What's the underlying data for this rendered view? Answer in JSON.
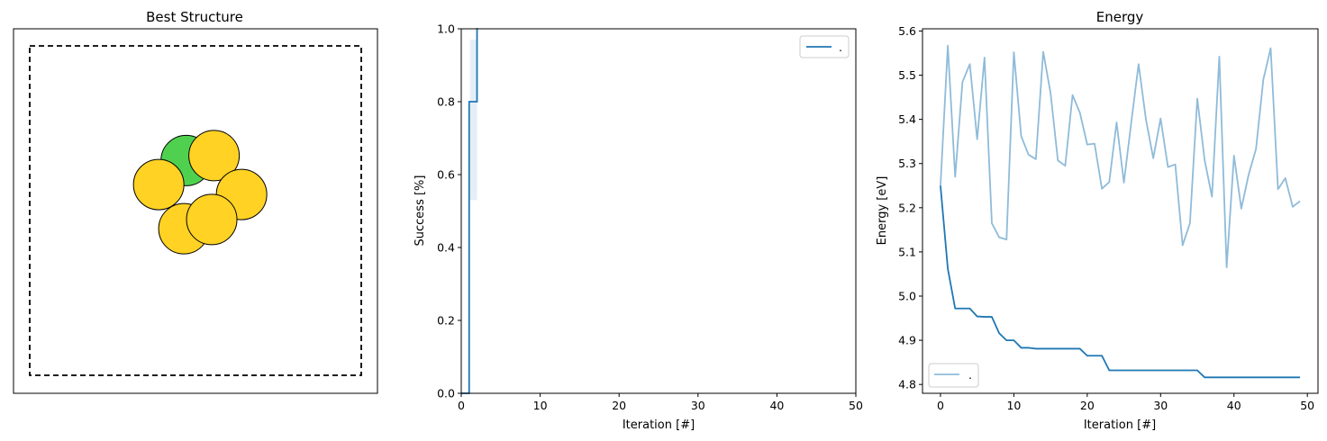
{
  "chart_data": [
    {
      "type": "scatter",
      "title": "Best Structure",
      "xlabel": "",
      "ylabel": "",
      "axes_ticks": false,
      "cell": "dashed-square",
      "atoms": [
        {
          "x": 0.472,
          "y": 0.652,
          "color": "#4fd14f"
        },
        {
          "x": 0.556,
          "y": 0.667,
          "color": "#ffd224"
        },
        {
          "x": 0.389,
          "y": 0.579,
          "color": "#ffd224"
        },
        {
          "x": 0.639,
          "y": 0.549,
          "color": "#ffd224"
        },
        {
          "x": 0.465,
          "y": 0.445,
          "color": "#ffd224"
        },
        {
          "x": 0.549,
          "y": 0.473,
          "color": "#ffd224"
        }
      ]
    },
    {
      "type": "line",
      "title": "",
      "xlabel": "Iteration [#]",
      "ylabel": "Success [%]",
      "xlim": [
        0,
        50
      ],
      "ylim": [
        0.0,
        1.0
      ],
      "xticks": [
        "0",
        "10",
        "20",
        "30",
        "40",
        "50"
      ],
      "yticks": [
        "0.0",
        "0.2",
        "0.4",
        "0.6",
        "0.8",
        "1.0"
      ],
      "legend": {
        "position": "top-right",
        "label": "."
      },
      "color": "#1f77b4",
      "series": [
        {
          "name": ".",
          "step": true,
          "x": [
            0,
            1,
            1,
            2,
            2,
            2.1
          ],
          "y": [
            0.0,
            0.0,
            0.8,
            0.8,
            1.0,
            1.0
          ]
        }
      ],
      "band": {
        "x": [
          1,
          2
        ],
        "lower": 0.53,
        "upper": 0.97
      }
    },
    {
      "type": "line",
      "title": "Energy",
      "xlabel": "Iteration [#]",
      "ylabel": "Energy [eV]",
      "xlim": [
        -2.45,
        51.45
      ],
      "ylim": [
        4.78,
        5.605
      ],
      "xticks": [
        0,
        10,
        20,
        30,
        40,
        50
      ],
      "yticks": [
        "4.8",
        "4.9",
        "5.0",
        "5.1",
        "5.2",
        "5.3",
        "5.4",
        "5.5",
        "5.6"
      ],
      "legend": {
        "position": "bottom-left",
        "label": "."
      },
      "series": [
        {
          "name": ".",
          "color": "#1f77b4",
          "opacity": 0.5,
          "x": [
            0,
            1,
            2,
            3,
            4,
            5,
            6,
            7,
            8,
            9,
            10,
            11,
            12,
            13,
            14,
            15,
            16,
            17,
            18,
            19,
            20,
            21,
            22,
            23,
            24,
            25,
            26,
            27,
            28,
            29,
            30,
            31,
            32,
            33,
            34,
            35,
            36,
            37,
            38,
            39,
            40,
            41,
            42,
            43,
            44,
            45,
            46,
            47,
            48,
            49
          ],
          "y": [
            5.25,
            5.567,
            5.27,
            5.485,
            5.525,
            5.355,
            5.54,
            5.165,
            5.133,
            5.128,
            5.552,
            5.362,
            5.32,
            5.31,
            5.553,
            5.46,
            5.307,
            5.295,
            5.455,
            5.415,
            5.343,
            5.345,
            5.243,
            5.258,
            5.393,
            5.257,
            5.393,
            5.525,
            5.4,
            5.312,
            5.402,
            5.292,
            5.298,
            5.115,
            5.165,
            5.447,
            5.308,
            5.225,
            5.542,
            5.065,
            5.318,
            5.198,
            5.275,
            5.333,
            5.49,
            5.561,
            5.242,
            5.267,
            5.202,
            5.215
          ]
        },
        {
          "name": "",
          "color": "#1f77b4",
          "opacity": 1,
          "x": [
            0,
            1,
            2,
            3,
            4,
            5,
            6,
            7,
            8,
            9,
            10,
            11,
            12,
            13,
            14,
            15,
            16,
            17,
            18,
            19,
            20,
            21,
            22,
            23,
            24,
            25,
            26,
            27,
            28,
            29,
            30,
            31,
            32,
            33,
            34,
            35,
            36,
            37,
            38,
            39,
            40,
            41,
            42,
            43,
            44,
            45,
            46,
            47,
            48,
            49
          ],
          "y": [
            5.25,
            5.062,
            4.972,
            4.972,
            4.972,
            4.954,
            4.953,
            4.953,
            4.916,
            4.9,
            4.9,
            4.883,
            4.883,
            4.881,
            4.881,
            4.881,
            4.881,
            4.881,
            4.881,
            4.881,
            4.865,
            4.865,
            4.865,
            4.832,
            4.832,
            4.832,
            4.832,
            4.832,
            4.832,
            4.832,
            4.832,
            4.832,
            4.832,
            4.832,
            4.832,
            4.832,
            4.816,
            4.816,
            4.816,
            4.816,
            4.816,
            4.816,
            4.816,
            4.816,
            4.816,
            4.816,
            4.816,
            4.816,
            4.816,
            4.816
          ]
        }
      ]
    }
  ]
}
